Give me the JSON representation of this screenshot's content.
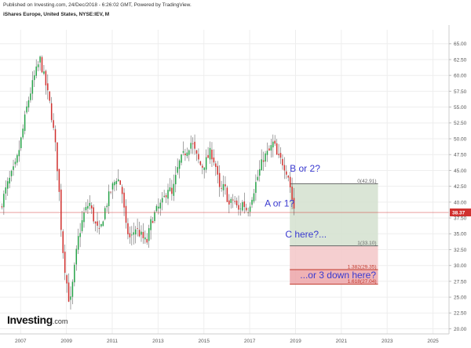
{
  "header": {
    "published": "Published on Investing.com, 24/Dec/2018 - 6:26:02 GMT, Powered by TradingView.",
    "instrument": "iShares Europe, United States, NYSE:IEV, M"
  },
  "logo": {
    "main": "Investing",
    "suffix": ".com"
  },
  "chart_data": {
    "type": "candlestick",
    "title": "iShares Europe, United States, NYSE:IEV, M",
    "x_range": [
      2006.1,
      2025.7
    ],
    "y_range": [
      19.2,
      67.2
    ],
    "y_axis_side": "right",
    "y_ticks": [
      20,
      22.5,
      25,
      27.5,
      30,
      32.5,
      35,
      37.5,
      40,
      42.5,
      45,
      47.5,
      50,
      52.5,
      55,
      57.5,
      60,
      62.5,
      65
    ],
    "y_tick_labels": [
      "20.00",
      "22.50",
      "25.00",
      "27.50",
      "30.00",
      "32.50",
      "35.00",
      "37.50",
      "40.00",
      "42.50",
      "45.00",
      "47.50",
      "50.00",
      "52.50",
      "55.00",
      "57.50",
      "60.00",
      "62.50",
      "65.00"
    ],
    "x_ticks": [
      2007,
      2009,
      2011,
      2013,
      2015,
      2017,
      2019,
      2021,
      2023,
      2025
    ],
    "x_tick_labels": [
      "2007",
      "2009",
      "2011",
      "2013",
      "2015",
      "2017",
      "2019",
      "2021",
      "2023",
      "2025"
    ],
    "grid": true,
    "colors": {
      "up": "#26a248",
      "down": "#d0302e",
      "wick": "#666666"
    },
    "price_path": [
      [
        2006.1,
        39.0
      ],
      [
        2006.4,
        42.5
      ],
      [
        2006.8,
        46.0
      ],
      [
        2007.0,
        49.5
      ],
      [
        2007.3,
        55.5
      ],
      [
        2007.6,
        59.8
      ],
      [
        2007.85,
        62.5
      ],
      [
        2008.1,
        58.5
      ],
      [
        2008.3,
        55.0
      ],
      [
        2008.5,
        49.5
      ],
      [
        2008.65,
        43.5
      ],
      [
        2008.8,
        34.0
      ],
      [
        2008.95,
        29.0
      ],
      [
        2009.15,
        23.5
      ],
      [
        2009.3,
        28.0
      ],
      [
        2009.5,
        34.0
      ],
      [
        2009.75,
        38.0
      ],
      [
        2010.0,
        40.0
      ],
      [
        2010.25,
        36.5
      ],
      [
        2010.45,
        35.0
      ],
      [
        2010.65,
        38.5
      ],
      [
        2010.9,
        41.5
      ],
      [
        2011.2,
        44.0
      ],
      [
        2011.4,
        42.5
      ],
      [
        2011.6,
        36.0
      ],
      [
        2011.8,
        34.0
      ],
      [
        2012.0,
        36.0
      ],
      [
        2012.3,
        34.5
      ],
      [
        2012.5,
        33.5
      ],
      [
        2012.7,
        37.0
      ],
      [
        2012.9,
        38.5
      ],
      [
        2013.2,
        40.0
      ],
      [
        2013.45,
        42.5
      ],
      [
        2013.6,
        41.0
      ],
      [
        2013.9,
        46.0
      ],
      [
        2014.2,
        48.0
      ],
      [
        2014.45,
        49.5
      ],
      [
        2014.7,
        47.0
      ],
      [
        2014.9,
        45.5
      ],
      [
        2015.1,
        46.5
      ],
      [
        2015.3,
        48.0
      ],
      [
        2015.5,
        46.0
      ],
      [
        2015.7,
        41.5
      ],
      [
        2015.9,
        42.5
      ],
      [
        2016.1,
        39.5
      ],
      [
        2016.3,
        40.5
      ],
      [
        2016.5,
        38.5
      ],
      [
        2016.7,
        40.0
      ],
      [
        2016.9,
        38.5
      ],
      [
        2017.1,
        41.0
      ],
      [
        2017.35,
        44.0
      ],
      [
        2017.6,
        47.0
      ],
      [
        2017.85,
        48.0
      ],
      [
        2018.05,
        49.5
      ],
      [
        2018.2,
        47.0
      ],
      [
        2018.4,
        46.5
      ],
      [
        2018.55,
        45.5
      ],
      [
        2018.7,
        44.0
      ],
      [
        2018.85,
        40.5
      ],
      [
        2018.97,
        38.37
      ]
    ],
    "last_price": 38.37,
    "last_price_label": "38.37",
    "fib_levels": [
      {
        "ratio_label": "0(42.91)",
        "value": 42.91,
        "color": "#666666"
      },
      {
        "ratio_label": "1(33.10)",
        "value": 33.1,
        "color": "#666666"
      },
      {
        "ratio_label": "1.382(29.35)",
        "value": 29.35,
        "color": "#c0392b"
      },
      {
        "ratio_label": "1.618(27.04)",
        "value": 27.04,
        "color": "#c0392b"
      }
    ],
    "fib_x_range": [
      2018.75,
      2022.6
    ],
    "fib_zone_colors": [
      "#d3e0cf",
      "#f3c7c8",
      "#eca5a8"
    ],
    "annotations": [
      {
        "text": "B or 2?",
        "x": 2018.75,
        "y": 44.8
      },
      {
        "text": "A or 1?",
        "x": 2017.65,
        "y": 39.3
      },
      {
        "text": "C here?...",
        "x": 2018.55,
        "y": 34.4
      },
      {
        "text": "...or 3 down here?",
        "x": 2019.2,
        "y": 28.0
      }
    ]
  }
}
